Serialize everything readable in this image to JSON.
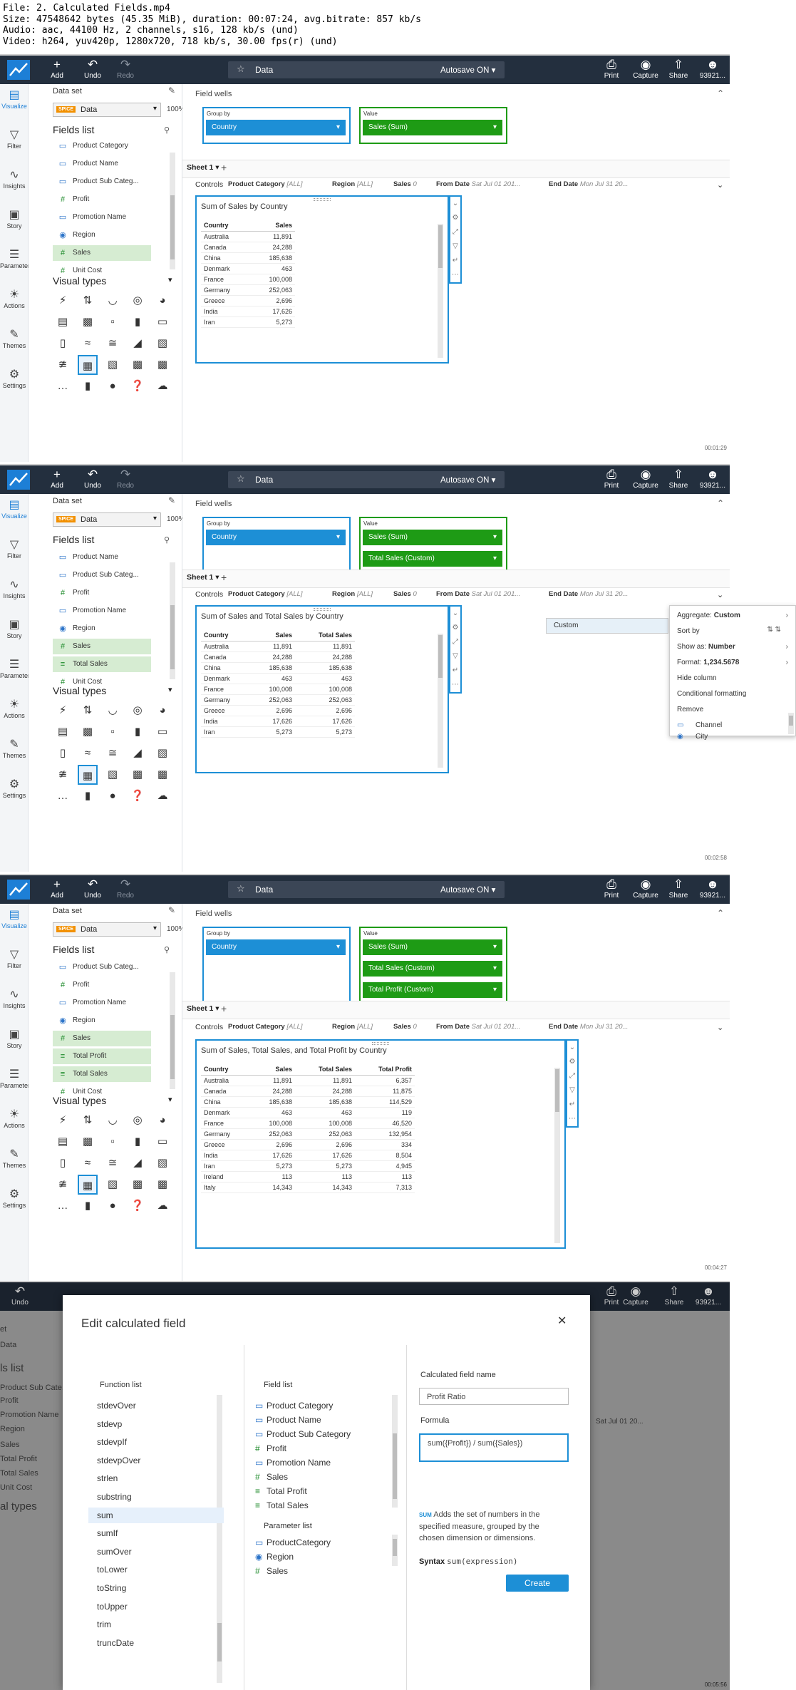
{
  "info_lines": [
    "File: 2. Calculated Fields.mp4",
    "Size: 47548642 bytes (45.35 MiB), duration: 00:07:24, avg.bitrate: 857 kb/s",
    "Audio: aac, 44100 Hz, 2 channels, s16, 128 kb/s (und)",
    "Video: h264, yuv420p, 1280x720, 718 kb/s, 30.00 fps(r) (und)"
  ],
  "topbar": {
    "add": "Add",
    "undo": "Undo",
    "redo": "Redo",
    "doc_name": "Data",
    "autosave": "Autosave ON",
    "print": "Print",
    "capture": "Capture",
    "share": "Share",
    "user": "93921..."
  },
  "rail": [
    "Visualize",
    "Filter",
    "Insights",
    "Story",
    "Parameters",
    "Actions",
    "Themes",
    "Settings"
  ],
  "panel": {
    "dataset_label": "Data set",
    "dataset_name": "Data",
    "spice": "SPICE",
    "pct": "100%",
    "fields_title": "Fields list",
    "visual_types_title": "Visual types"
  },
  "fields_f1": [
    {
      "label": "Product Category",
      "icon": "dim"
    },
    {
      "label": "Product Name",
      "icon": "dim"
    },
    {
      "label": "Product Sub Categ...",
      "icon": "dim"
    },
    {
      "label": "Profit",
      "icon": "measure"
    },
    {
      "label": "Promotion Name",
      "icon": "dim"
    },
    {
      "label": "Region",
      "icon": "geo"
    },
    {
      "label": "Sales",
      "icon": "measure",
      "sel": true
    },
    {
      "label": "Unit Cost",
      "icon": "measure"
    }
  ],
  "fields_f2": [
    {
      "label": "Product Name",
      "icon": "dim"
    },
    {
      "label": "Product Sub Categ...",
      "icon": "dim"
    },
    {
      "label": "Profit",
      "icon": "measure"
    },
    {
      "label": "Promotion Name",
      "icon": "dim"
    },
    {
      "label": "Region",
      "icon": "geo"
    },
    {
      "label": "Sales",
      "icon": "measure",
      "sel": true
    },
    {
      "label": "Total Sales",
      "icon": "calc",
      "sel": true
    },
    {
      "label": "Unit Cost",
      "icon": "measure"
    }
  ],
  "fields_f3": [
    {
      "label": "Product Sub Categ...",
      "icon": "dim"
    },
    {
      "label": "Profit",
      "icon": "measure"
    },
    {
      "label": "Promotion Name",
      "icon": "dim"
    },
    {
      "label": "Region",
      "icon": "geo"
    },
    {
      "label": "Sales",
      "icon": "measure",
      "sel": true
    },
    {
      "label": "Total Profit",
      "icon": "calc",
      "sel": true
    },
    {
      "label": "Total Sales",
      "icon": "calc",
      "sel": true
    },
    {
      "label": "Unit Cost",
      "icon": "measure"
    }
  ],
  "wells": {
    "label": "Field wells",
    "group_by": "Group by",
    "value": "Value",
    "group_pill": "Country",
    "f1_values": [
      "Sales (Sum)"
    ],
    "f2_values": [
      "Sales (Sum)",
      "Total Sales (Custom)"
    ],
    "f3_values": [
      "Sales (Sum)",
      "Total Sales (Custom)",
      "Total Profit (Custom)"
    ]
  },
  "sheet": {
    "tab": "Sheet 1"
  },
  "controls": {
    "label": "Controls",
    "product_category": "Product Category",
    "product_category_val": "[ALL]",
    "region": "Region",
    "region_val": "[ALL]",
    "sales": "Sales",
    "sales_val": "0",
    "from_date": "From Date",
    "from_date_val": "Sat Jul 01 201...",
    "end_date": "End Date",
    "end_date_val": "Mon Jul 31 20..."
  },
  "visual_titles": [
    "Sum of Sales by Country",
    "Sum of Sales and Total Sales by Country",
    "Sum of Sales, Total Sales, and Total Profit by Country"
  ],
  "table": {
    "headers": [
      "Country",
      "Sales",
      "Total Sales",
      "Total Profit"
    ],
    "rows": [
      [
        "Australia",
        "11,891",
        "11,891",
        "6,357"
      ],
      [
        "Canada",
        "24,288",
        "24,288",
        "11,875"
      ],
      [
        "China",
        "185,638",
        "185,638",
        "114,529"
      ],
      [
        "Denmark",
        "463",
        "463",
        "119"
      ],
      [
        "France",
        "100,008",
        "100,008",
        "46,520"
      ],
      [
        "Germany",
        "252,063",
        "252,063",
        "132,954"
      ],
      [
        "Greece",
        "2,696",
        "2,696",
        "334"
      ],
      [
        "India",
        "17,626",
        "17,626",
        "8,504"
      ],
      [
        "Iran",
        "5,273",
        "5,273",
        "4,945"
      ],
      [
        "Ireland",
        "113",
        "113",
        "113"
      ],
      [
        "Italy",
        "14,343",
        "14,343",
        "7,313"
      ]
    ]
  },
  "popmenu": {
    "custom": "Custom",
    "aggregate": "Aggregate:",
    "aggregate_val": "Custom",
    "sort_by": "Sort by",
    "show_as": "Show as:",
    "show_as_val": "Number",
    "format": "Format:",
    "format_val": "1,234.5678",
    "hide_column": "Hide column",
    "conditional": "Conditional formatting",
    "remove": "Remove",
    "channel": "Channel",
    "city": "City"
  },
  "modal": {
    "title": "Edit calculated field",
    "function_list": "Function list",
    "field_list": "Field list",
    "parameter_list": "Parameter list",
    "calc_name_label": "Calculated field name",
    "calc_name": "Profit Ratio",
    "formula_label": "Formula",
    "formula": "sum({Profit}) / sum({Sales})",
    "help_tag": "SUM",
    "help": "Adds the set of numbers in the specified measure, grouped by the chosen dimension or dimensions.",
    "syntax_label": "Syntax",
    "syntax": "sum(expression)",
    "create": "Create",
    "functions": [
      "stdevOver",
      "stdevp",
      "stdevpIf",
      "stdevpOver",
      "strlen",
      "substring",
      "sum",
      "sumIf",
      "sumOver",
      "toLower",
      "toString",
      "toUpper",
      "trim",
      "truncDate"
    ],
    "fields": [
      {
        "label": "Product Category",
        "icon": "dim"
      },
      {
        "label": "Product Name",
        "icon": "dim"
      },
      {
        "label": "Product Sub Category",
        "icon": "dim"
      },
      {
        "label": "Profit",
        "icon": "measure"
      },
      {
        "label": "Promotion Name",
        "icon": "dim"
      },
      {
        "label": "Sales",
        "icon": "measure"
      },
      {
        "label": "Total Profit",
        "icon": "calc"
      },
      {
        "label": "Total Sales",
        "icon": "calc"
      }
    ],
    "params": [
      {
        "label": "ProductCategory",
        "icon": "dim"
      },
      {
        "label": "Region",
        "icon": "geo"
      },
      {
        "label": "Sales",
        "icon": "measure"
      }
    ],
    "bg_left": [
      "et",
      "Data",
      "ls list",
      "Product Sub Cate...",
      "Profit",
      "Promotion Name",
      "Region",
      "Sales",
      "Total Profit",
      "Total Sales",
      "Unit Cost",
      "al types"
    ],
    "bg_controls": "Sat Jul 01 20..."
  },
  "timestamps": [
    "00:01:29",
    "00:02:58",
    "00:04:27",
    "00:05:56"
  ]
}
